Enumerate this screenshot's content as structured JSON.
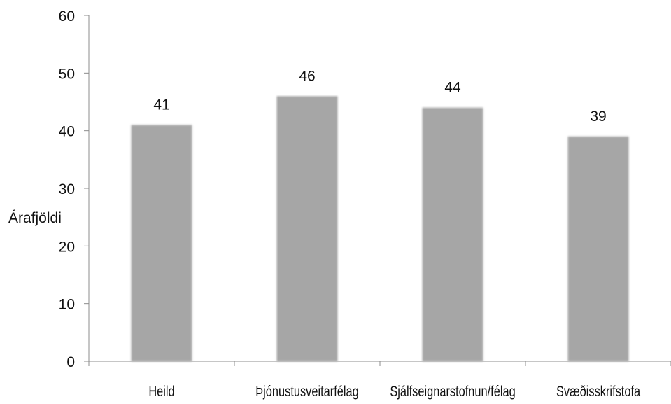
{
  "chart_data": {
    "type": "bar",
    "title": "",
    "xlabel": "",
    "ylabel": "Árafjöldi",
    "categories": [
      "Heild",
      "Þjónustusveitarfélag",
      "Sjálfseignarstofnun/félag",
      "Svæðisskrifstofa"
    ],
    "values": [
      41,
      46,
      44,
      39
    ],
    "data_labels": [
      "41",
      "46",
      "44",
      "39"
    ],
    "ylim": [
      0,
      60
    ],
    "yticks": [
      0,
      10,
      20,
      30,
      40,
      50,
      60
    ],
    "ytick_labels": [
      "0",
      "10",
      "20",
      "30",
      "40",
      "50",
      "60"
    ],
    "grid": false,
    "legend": "none",
    "bar_color": "#a6a6a6",
    "axis_color": "#8c8c8c",
    "text_color": "#111111"
  }
}
